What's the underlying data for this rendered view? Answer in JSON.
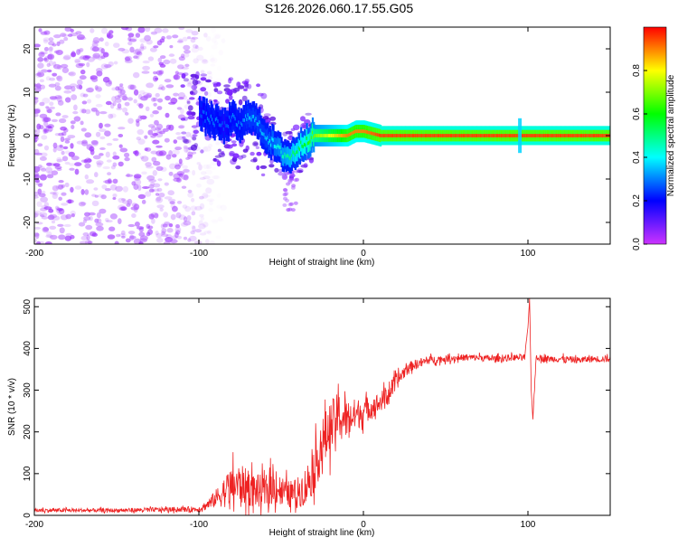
{
  "figure_title": "S126.2026.060.17.55.G05",
  "chart_data": [
    {
      "type": "heatmap",
      "title": "S126.2026.060.17.55.G05",
      "xlabel": "Height of straight line (km)",
      "ylabel": "Frequency (Hz)",
      "xlim": [
        -200,
        150
      ],
      "ylim": [
        -25,
        25
      ],
      "x_ticks": [
        -200,
        -100,
        0,
        100
      ],
      "y_ticks": [
        -20,
        -10,
        0,
        10,
        20
      ],
      "colorbar": {
        "label": "Normalized spectral amplitude",
        "range": [
          0,
          1
        ],
        "ticks": [
          0.0,
          0.2,
          0.4,
          0.6,
          0.8
        ],
        "colormap": [
          "#cc33ff",
          "#0000ff",
          "#00ffff",
          "#00ff00",
          "#ffff00",
          "#ff0000"
        ]
      },
      "ridge": {
        "description": "dominant frequency component vs height",
        "x": [
          -100,
          -95,
          -90,
          -85,
          -80,
          -75,
          -70,
          -65,
          -60,
          -55,
          -50,
          -45,
          -40,
          -35,
          -30,
          -25,
          -20,
          -15,
          -10,
          -5,
          0,
          10,
          20,
          40,
          60,
          80,
          95,
          100,
          120,
          150
        ],
        "frequency": [
          5,
          4,
          3,
          2,
          4,
          2,
          5,
          3,
          0,
          -2,
          -4,
          -5,
          -3,
          -1,
          0,
          0,
          0,
          0,
          0,
          1,
          1,
          0,
          0,
          0,
          0,
          0,
          0,
          0,
          0,
          0
        ],
        "amplitude": [
          0.25,
          0.3,
          0.3,
          0.25,
          0.3,
          0.3,
          0.35,
          0.35,
          0.35,
          0.4,
          0.45,
          0.5,
          0.55,
          0.6,
          0.7,
          0.75,
          0.8,
          0.85,
          0.9,
          0.9,
          0.9,
          0.95,
          0.95,
          0.95,
          0.95,
          0.95,
          0.95,
          0.95,
          0.95,
          0.95
        ]
      },
      "noise_region": {
        "x_range": [
          -200,
          -95
        ],
        "frequency_range": [
          -25,
          25
        ],
        "amplitude": 0.1
      }
    },
    {
      "type": "line",
      "title": "",
      "xlabel": "Height of straight line (km)",
      "ylabel": "SNR (10 * v/v)",
      "xlim": [
        -200,
        150
      ],
      "ylim": [
        0,
        520
      ],
      "x_ticks": [
        -200,
        -100,
        0,
        100
      ],
      "y_ticks": [
        0,
        100,
        200,
        300,
        400,
        500
      ],
      "color": "#ee2222",
      "series": [
        {
          "name": "SNR",
          "x": [
            -200,
            -150,
            -100,
            -95,
            -90,
            -85,
            -80,
            -75,
            -70,
            -65,
            -60,
            -55,
            -50,
            -45,
            -40,
            -35,
            -30,
            -25,
            -20,
            -15,
            -10,
            -5,
            0,
            5,
            10,
            15,
            20,
            25,
            30,
            40,
            50,
            60,
            70,
            80,
            90,
            98,
            100,
            101,
            102,
            103,
            105,
            110,
            120,
            130,
            140,
            150
          ],
          "y": [
            12,
            12,
            15,
            25,
            40,
            55,
            70,
            75,
            65,
            60,
            55,
            70,
            60,
            50,
            55,
            70,
            110,
            170,
            210,
            240,
            230,
            240,
            250,
            260,
            270,
            290,
            320,
            345,
            360,
            372,
            375,
            378,
            378,
            375,
            378,
            378,
            450,
            520,
            300,
            230,
            380,
            375,
            375,
            372,
            375,
            375
          ],
          "noise_amplitude": [
            6,
            6,
            8,
            15,
            25,
            45,
            60,
            60,
            55,
            50,
            50,
            55,
            45,
            40,
            45,
            60,
            70,
            80,
            80,
            70,
            60,
            50,
            40,
            35,
            30,
            30,
            25,
            20,
            15,
            12,
            10,
            10,
            10,
            10,
            10,
            10,
            0,
            0,
            0,
            0,
            10,
            10,
            10,
            10,
            10,
            10
          ]
        }
      ]
    }
  ]
}
